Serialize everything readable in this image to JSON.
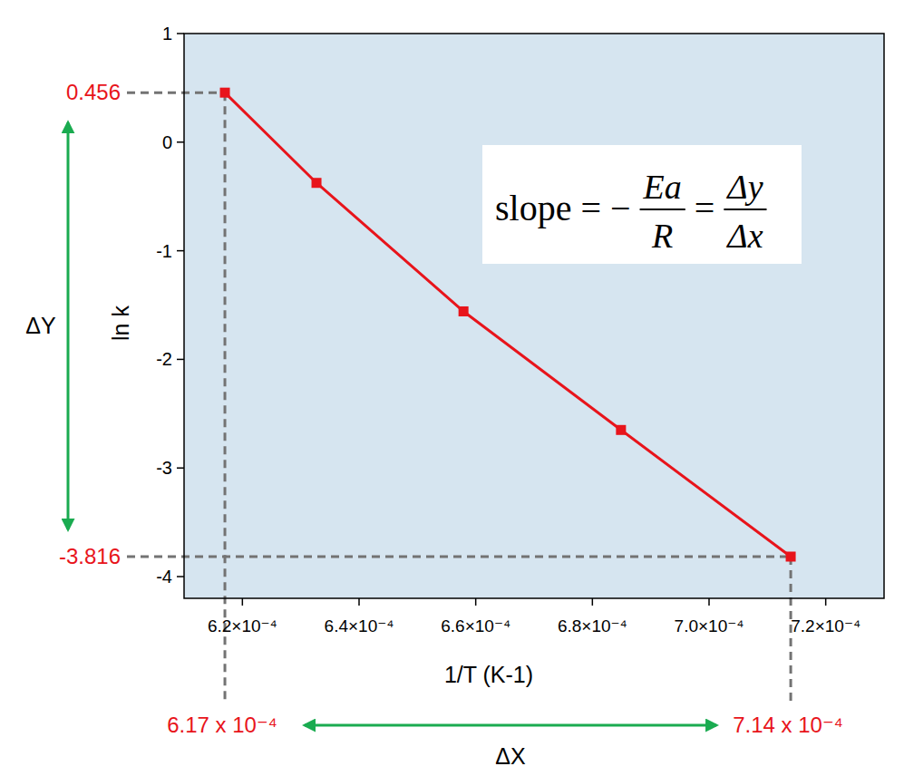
{
  "chart_data": {
    "type": "line",
    "x_label": "1/T (K-1)",
    "y_label": "ln k",
    "x": [
      0.000617,
      0.0006327,
      0.0006579,
      0.0006849,
      0.000714
    ],
    "values": [
      0.456,
      -0.375,
      -1.558,
      -2.65,
      -3.816
    ],
    "color": "#e8141b",
    "marker": "square",
    "grid": false,
    "xlim": [
      0.00061,
      0.00073
    ],
    "xticks": [
      {
        "value": 0.00062,
        "label": "6.2×10⁻⁴"
      },
      {
        "value": 0.00064,
        "label": "6.4×10⁻⁴"
      },
      {
        "value": 0.00066,
        "label": "6.6×10⁻⁴"
      },
      {
        "value": 0.00068,
        "label": "6.8×10⁻⁴"
      },
      {
        "value": 0.0007,
        "label": "7.0×10⁻⁴"
      },
      {
        "value": 0.00072,
        "label": "7.2×10⁻⁴"
      }
    ],
    "ylim": [
      -4.2,
      1
    ],
    "yticks": [
      1,
      0,
      -1,
      -2,
      -3,
      -4
    ],
    "annotations": [
      {
        "text": "0.456",
        "axis": "y",
        "x": 0.000617,
        "y": 0.456
      },
      {
        "text": "-3.816",
        "axis": "y",
        "x": 0.000714,
        "y": -3.816
      },
      {
        "text": "6.17 x 10⁻⁴",
        "axis": "x",
        "x": 0.000617,
        "y": 0.456
      },
      {
        "text": "7.14 x 10⁻⁴",
        "axis": "x",
        "x": 0.000714,
        "y": -3.816
      },
      {
        "text": "ΔY",
        "axis": "y"
      },
      {
        "text": "ΔX",
        "axis": "x"
      }
    ],
    "formula": [
      {
        "text": "slope = −"
      },
      {
        "numerator": "Ea",
        "denominator": "R"
      },
      {
        "text": "="
      },
      {
        "numerator": "Δy",
        "denominator": "Δx"
      }
    ]
  }
}
